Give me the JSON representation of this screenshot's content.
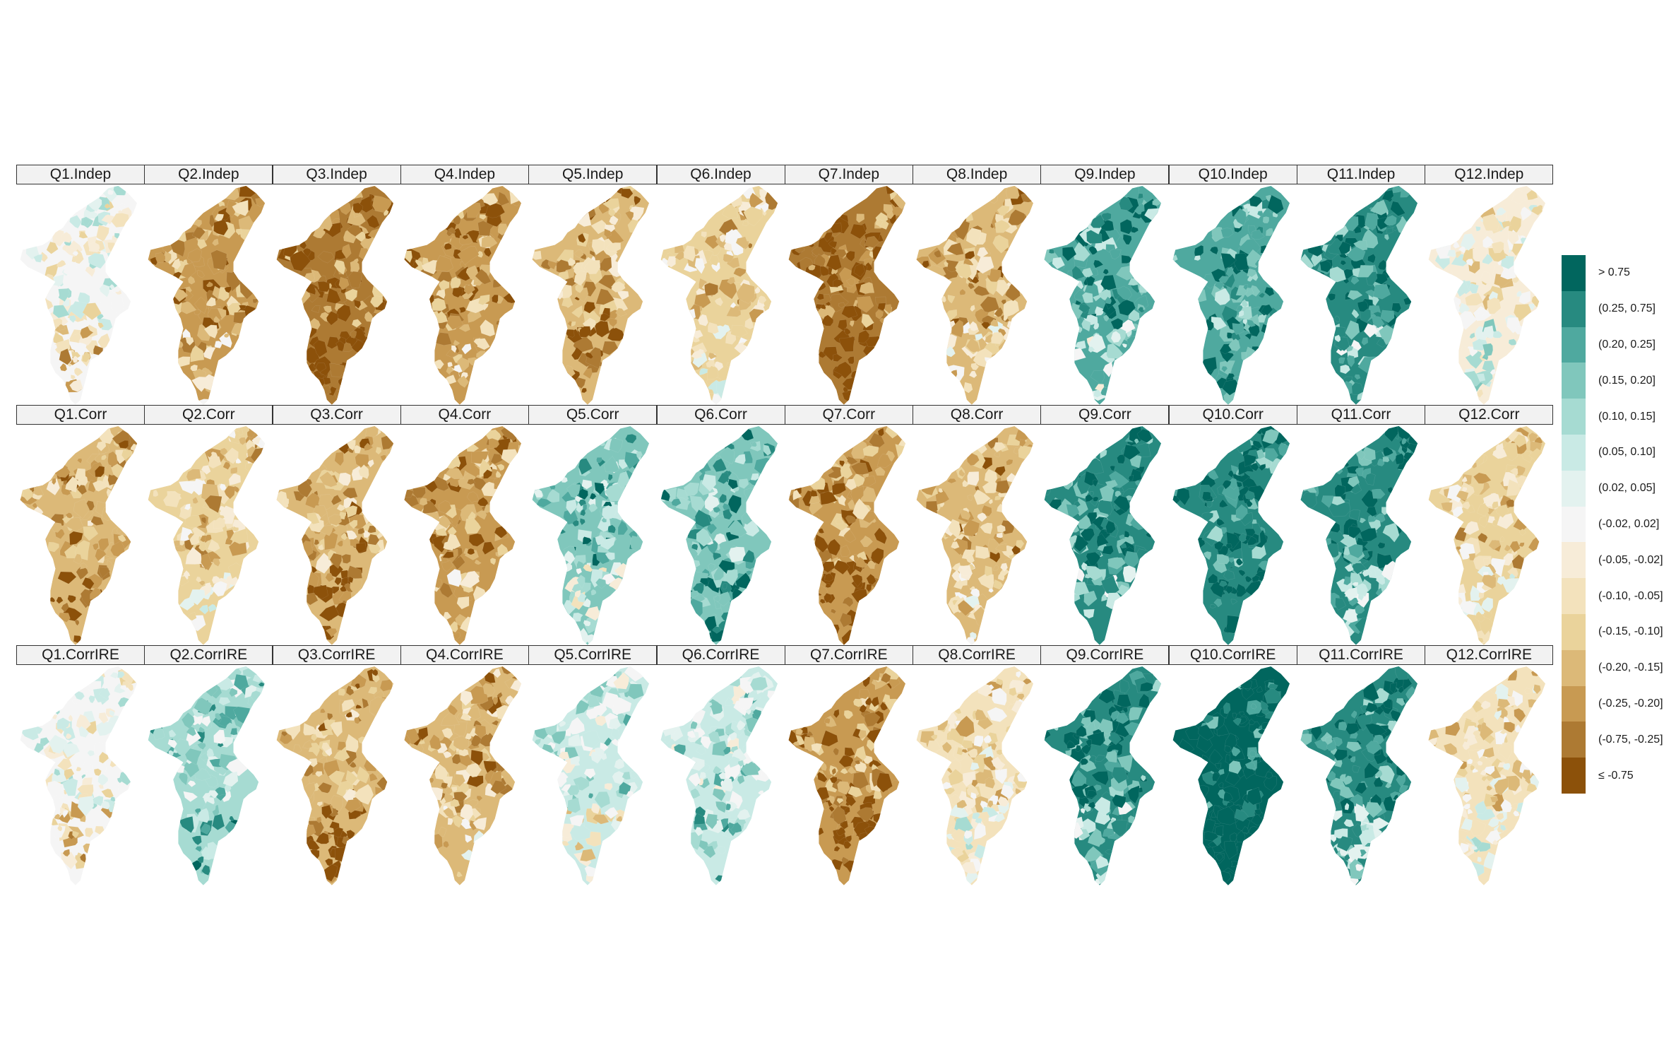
{
  "figure": {
    "columns": [
      "Q1",
      "Q2",
      "Q3",
      "Q4",
      "Q5",
      "Q6",
      "Q7",
      "Q8",
      "Q9",
      "Q10",
      "Q11",
      "Q12"
    ],
    "rows": [
      "Indep",
      "Corr",
      "CorrIRE"
    ],
    "panel_titles": [
      [
        "Q1.Indep",
        "Q2.Indep",
        "Q3.Indep",
        "Q4.Indep",
        "Q5.Indep",
        "Q6.Indep",
        "Q7.Indep",
        "Q8.Indep",
        "Q9.Indep",
        "Q10.Indep",
        "Q11.Indep",
        "Q12.Indep"
      ],
      [
        "Q1.Corr",
        "Q2.Corr",
        "Q3.Corr",
        "Q4.Corr",
        "Q5.Corr",
        "Q6.Corr",
        "Q7.Corr",
        "Q8.Corr",
        "Q9.Corr",
        "Q10.Corr",
        "Q11.Corr",
        "Q12.Corr"
      ],
      [
        "Q1.CorrIRE",
        "Q2.CorrIRE",
        "Q3.CorrIRE",
        "Q4.CorrIRE",
        "Q5.CorrIRE",
        "Q6.CorrIRE",
        "Q7.CorrIRE",
        "Q8.CorrIRE",
        "Q9.CorrIRE",
        "Q10.CorrIRE",
        "Q11.CorrIRE",
        "Q12.CorrIRE"
      ]
    ],
    "strip_background": "#f2f2f2",
    "strip_border": "#333333"
  },
  "legend": {
    "position": "right",
    "classes": [
      {
        "label": "> 0.75",
        "color": "#01665e"
      },
      {
        "label": "(0.25, 0.75]",
        "color": "#278a80"
      },
      {
        "label": "(0.20, 0.25]",
        "color": "#4fa99f"
      },
      {
        "label": "(0.15, 0.20]",
        "color": "#80c7bc"
      },
      {
        "label": "(0.10, 0.15]",
        "color": "#a6dbd2"
      },
      {
        "label": "(0.05, 0.10]",
        "color": "#c9eae5"
      },
      {
        "label": "(0.02, 0.05]",
        "color": "#e3f2ef"
      },
      {
        "label": "(-0.02, 0.02]",
        "color": "#f5f5f5"
      },
      {
        "label": "(-0.05, -0.02]",
        "color": "#f7ecd8"
      },
      {
        "label": "(-0.10, -0.05]",
        "color": "#f3e2bc"
      },
      {
        "label": "(-0.15, -0.10]",
        "color": "#ead39b"
      },
      {
        "label": "(-0.20, -0.15]",
        "color": "#dcb978"
      },
      {
        "label": "(-0.25, -0.20]",
        "color": "#c89a52"
      },
      {
        "label": "(-0.75, -0.25]",
        "color": "#ad7a33"
      },
      {
        "label": "≤ -0.75",
        "color": "#8c510a"
      }
    ]
  },
  "maps": {
    "region_count_per_panel": 120,
    "dominant_class_by_panel": [
      [
        7,
        12,
        13,
        12,
        11,
        10,
        13,
        11,
        2,
        2,
        1,
        8
      ],
      [
        11,
        10,
        11,
        12,
        3,
        3,
        12,
        11,
        1,
        1,
        1,
        10
      ],
      [
        7,
        4,
        11,
        11,
        5,
        5,
        12,
        9,
        1,
        0,
        1,
        9
      ]
    ]
  }
}
